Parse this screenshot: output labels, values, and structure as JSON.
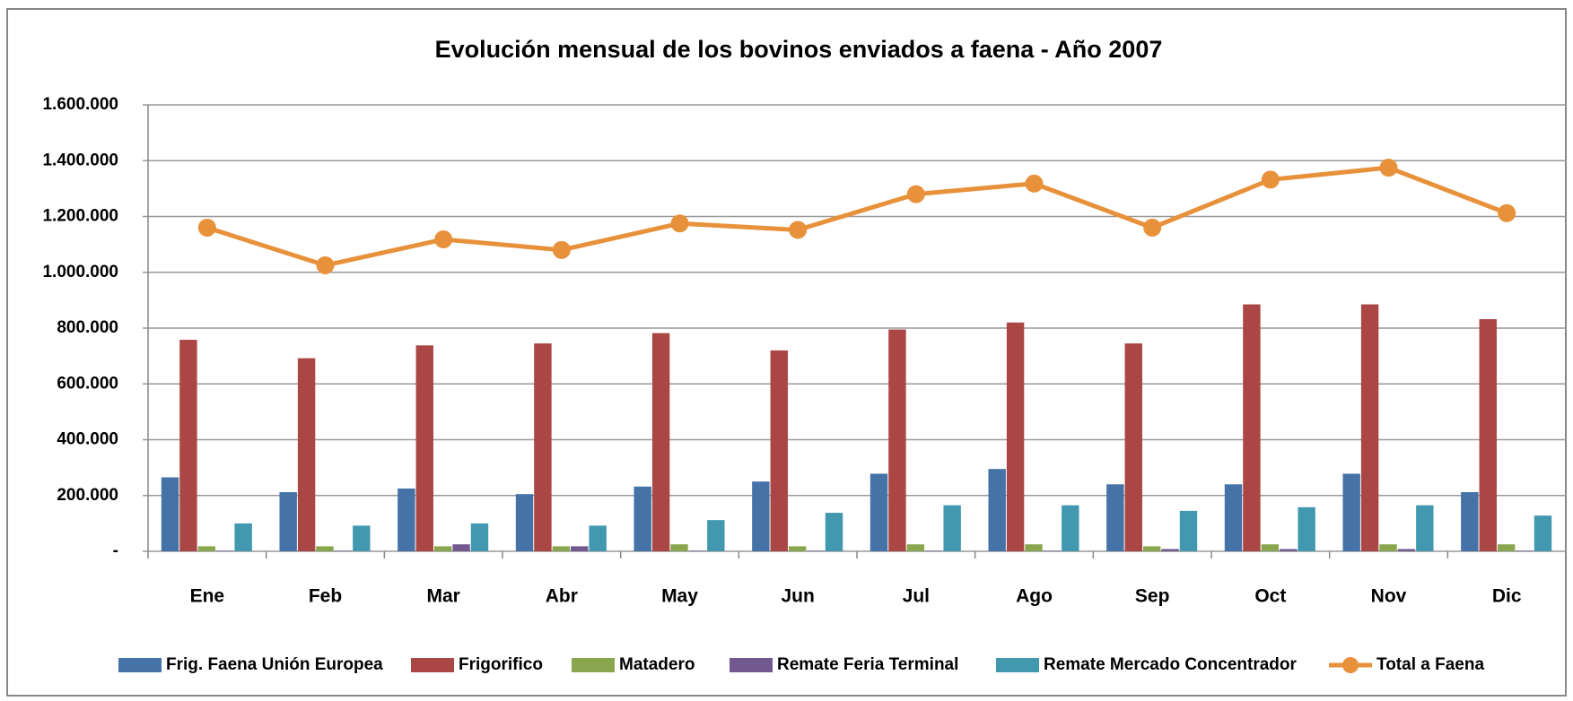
{
  "chart_data": {
    "type": "bar",
    "title": "Evolución mensual de los bovinos enviados a faena - Año 2007",
    "categories": [
      "Ene",
      "Feb",
      "Mar",
      "Abr",
      "May",
      "Jun",
      "Jul",
      "Ago",
      "Sep",
      "Oct",
      "Nov",
      "Dic"
    ],
    "series": [
      {
        "name": "Frig. Faena Unión Europea",
        "color": "#4572a7",
        "type": "bar",
        "values": [
          265000,
          212000,
          225000,
          205000,
          232000,
          250000,
          278000,
          295000,
          240000,
          240000,
          278000,
          212000
        ]
      },
      {
        "name": "Frigorifico",
        "color": "#aa4643",
        "type": "bar",
        "values": [
          758000,
          692000,
          738000,
          745000,
          782000,
          720000,
          795000,
          820000,
          745000,
          885000,
          885000,
          832000
        ]
      },
      {
        "name": "Matadero",
        "color": "#89a54e",
        "type": "bar",
        "values": [
          18000,
          18000,
          18000,
          18000,
          25000,
          18000,
          25000,
          25000,
          18000,
          25000,
          25000,
          25000
        ]
      },
      {
        "name": "Remate Feria Terminal",
        "color": "#71588f",
        "type": "bar",
        "values": [
          2000,
          2000,
          25000,
          18000,
          2000,
          2000,
          2000,
          2000,
          8000,
          8000,
          8000,
          2000
        ]
      },
      {
        "name": "Remate Mercado Concentrador",
        "color": "#4198af",
        "type": "bar",
        "values": [
          100000,
          92000,
          100000,
          92000,
          112000,
          138000,
          165000,
          165000,
          145000,
          158000,
          165000,
          128000
        ]
      },
      {
        "name": "Total a Faena",
        "color": "#e8913b",
        "type": "line",
        "values": [
          1160000,
          1025000,
          1118000,
          1080000,
          1175000,
          1152000,
          1280000,
          1318000,
          1160000,
          1332000,
          1375000,
          1212000
        ]
      }
    ],
    "ylim": [
      0,
      1600000
    ],
    "yticks": [
      {
        "value": 0,
        "label": "-"
      },
      {
        "value": 200000,
        "label": "200.000"
      },
      {
        "value": 400000,
        "label": "400.000"
      },
      {
        "value": 600000,
        "label": "600.000"
      },
      {
        "value": 800000,
        "label": "800.000"
      },
      {
        "value": 1000000,
        "label": "1.000.000"
      },
      {
        "value": 1200000,
        "label": "1.200.000"
      },
      {
        "value": 1400000,
        "label": "1.400.000"
      },
      {
        "value": 1600000,
        "label": "1.600.000"
      }
    ],
    "grid": true,
    "legend": "bottom"
  }
}
